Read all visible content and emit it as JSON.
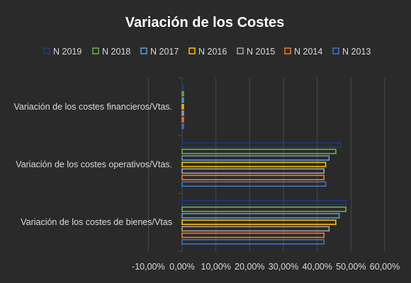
{
  "chart_data": {
    "type": "bar",
    "orientation": "horizontal",
    "title": "Variación de los Costes",
    "categories": [
      "Variación de los costes financieros/Vtas.",
      "Variación de los costes operativos/Vtas.",
      "Variación de los costes de bienes/Vtas"
    ],
    "series": [
      {
        "name": "N 2019",
        "color": "#1f3c78",
        "values": [
          0.004,
          0.47,
          0.485
        ]
      },
      {
        "name": "N 2018",
        "color": "#70ad47",
        "values": [
          0.004,
          0.455,
          0.485
        ]
      },
      {
        "name": "N 2017",
        "color": "#5b9bd5",
        "values": [
          0.004,
          0.435,
          0.465
        ]
      },
      {
        "name": "N 2016",
        "color": "#ffc000",
        "values": [
          0.004,
          0.425,
          0.455
        ]
      },
      {
        "name": "N 2015",
        "color": "#a5a5a5",
        "values": [
          0.004,
          0.42,
          0.435
        ]
      },
      {
        "name": "N 2014",
        "color": "#ed7d31",
        "values": [
          0.004,
          0.42,
          0.42
        ]
      },
      {
        "name": "N 2013",
        "color": "#4472c4",
        "values": [
          0.004,
          0.425,
          0.42
        ]
      }
    ],
    "xlim": [
      -0.1,
      0.6
    ],
    "xticks": [
      "-10,00%",
      "0,00%",
      "10,00%",
      "20,00%",
      "30,00%",
      "40,00%",
      "50,00%",
      "60,00%"
    ],
    "grid": true,
    "legend_position": "top"
  }
}
